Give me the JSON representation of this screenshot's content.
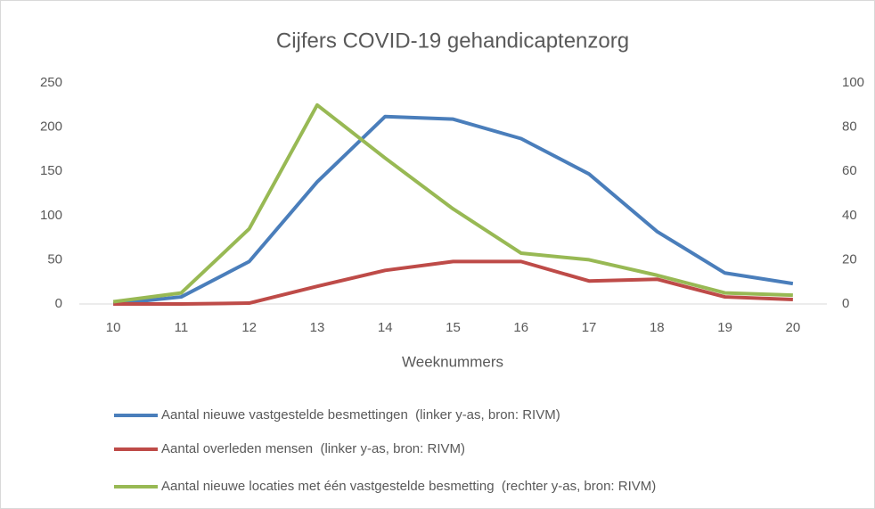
{
  "chart_data": {
    "type": "line",
    "title": "Cijfers COVID-19 gehandicaptenzorg",
    "x_label": "Weeknummers",
    "categories": [
      "10",
      "11",
      "12",
      "13",
      "14",
      "15",
      "16",
      "17",
      "18",
      "19",
      "20"
    ],
    "series": [
      {
        "name": "Aantal nieuwe vastgestelde besmettingen  (linker y-as, bron: RIVM)",
        "color": "#4a7ebb",
        "axis": "y",
        "values": [
          0,
          8,
          48,
          138,
          212,
          209,
          187,
          147,
          82,
          35,
          23
        ]
      },
      {
        "name": "Aantal overleden mensen  (linker y-as, bron: RIVM)",
        "color": "#be4b48",
        "axis": "y",
        "values": [
          0,
          0,
          1,
          20,
          38,
          48,
          48,
          26,
          28,
          8,
          5
        ]
      },
      {
        "name": "Aantal nieuwe locaties met één vastgestelde besmetting  (rechter y-as, bron: RIVM)",
        "color": "#98b954",
        "axis": "y2",
        "values": [
          1,
          5,
          34,
          90,
          66,
          43,
          23,
          20,
          13,
          5,
          4
        ]
      }
    ],
    "ylim": [
      0,
      250
    ],
    "yticks": [
      0,
      50,
      100,
      150,
      200,
      250
    ],
    "y2lim": [
      0,
      100
    ],
    "y2ticks": [
      0,
      20,
      40,
      60,
      80,
      100
    ],
    "grid": false,
    "legend": "bottom"
  }
}
